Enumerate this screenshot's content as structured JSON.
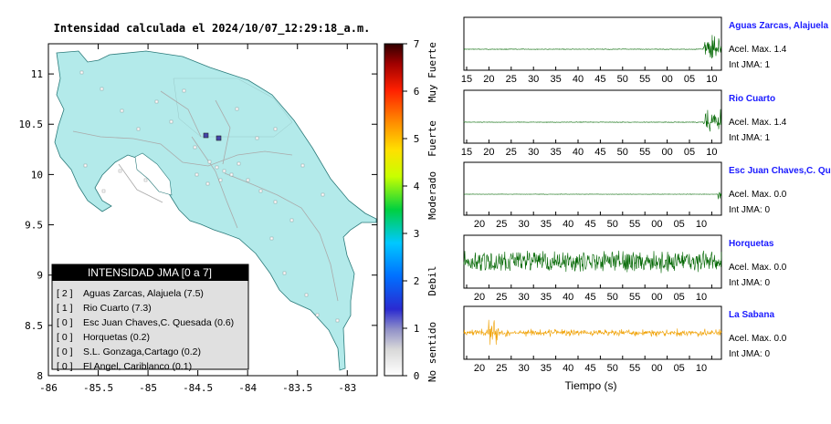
{
  "map": {
    "title": "Intensidad calculada el 2024/10/07_12:29:18_a.m.",
    "x_ticks": [
      "-86",
      "-85.5",
      "-85",
      "-84.5",
      "-84",
      "-83.5",
      "-83"
    ],
    "y_ticks": [
      "11",
      "10.5",
      "10",
      "9.5",
      "9",
      "8.5",
      "8"
    ],
    "x_range": [
      -86,
      -82.7
    ],
    "y_range": [
      8,
      11.3
    ],
    "colors": {
      "land": "#b3eaea",
      "roads": "#aaaaaa",
      "station": "#5a5ab4"
    }
  },
  "colorbar": {
    "range": [
      0,
      7
    ],
    "ticks": [
      "0",
      "1",
      "2",
      "3",
      "4",
      "5",
      "6",
      "7"
    ],
    "category_labels": [
      "No sentido",
      "Debil",
      "Moderado",
      "Fuerte",
      "Muy Fuerte"
    ]
  },
  "legend": {
    "title": "INTENSIDAD JMA [0 a 7]",
    "items": [
      {
        "bracket": "[ 2 ]",
        "name": "Aguas Zarcas, Alajuela (7.5)"
      },
      {
        "bracket": "[ 1 ]",
        "name": "Rio Cuarto (7.3)"
      },
      {
        "bracket": "[ 0 ]",
        "name": "Esc Juan Chaves,C. Quesada (0.6)"
      },
      {
        "bracket": "[ 0 ]",
        "name": "Horquetas (0.2)"
      },
      {
        "bracket": "[ 0 ]",
        "name": "S.L. Gonzaga,Cartago (0.2)"
      },
      {
        "bracket": "[ 0 ]",
        "name": "El Angel, Cariblanco (0.1)"
      }
    ]
  },
  "traces": [
    {
      "name": "Aguas Zarcas, Alajuela",
      "acel": "Acel. Max. 1.4",
      "jma": "Int JMA: 1",
      "color": "#006600"
    },
    {
      "name": "Rio Cuarto",
      "acel": "Acel. Max. 1.4",
      "jma": "Int JMA: 1",
      "color": "#006600"
    },
    {
      "name": "Esc Juan Chaves,C. Qu",
      "acel": "Acel. Max. 0.0",
      "jma": "Int JMA: 0",
      "color": "#006600"
    },
    {
      "name": "Horquetas",
      "acel": "Acel. Max. 0.0",
      "jma": "Int JMA: 0",
      "color": "#006600"
    },
    {
      "name": "La Sabana",
      "acel": "Acel. Max. 0.0",
      "jma": "Int JMA: 0",
      "color": "#f0a000"
    }
  ],
  "time_ticks": [
    "15",
    "20",
    "25",
    "30",
    "35",
    "40",
    "45",
    "50",
    "55",
    "00",
    "05",
    "10"
  ],
  "time_axis_label": "Tiempo (s)",
  "station_name_color": "#1a1aff"
}
